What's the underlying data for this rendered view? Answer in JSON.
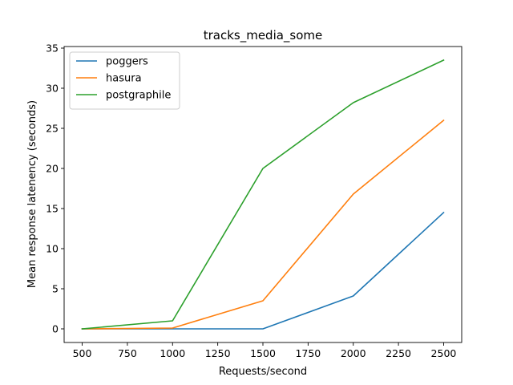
{
  "chart_data": {
    "type": "line",
    "title": "tracks_media_some",
    "xlabel": "Requests/second",
    "ylabel": "Mean response latenency (seconds)",
    "x": [
      500,
      1000,
      1500,
      2000,
      2500
    ],
    "xticks": [
      500,
      750,
      1000,
      1250,
      1500,
      1750,
      2000,
      2250,
      2500
    ],
    "yticks": [
      0,
      5,
      10,
      15,
      20,
      25,
      30,
      35
    ],
    "xlim": [
      400,
      2600
    ],
    "ylim": [
      -1.7,
      35.2
    ],
    "legend_position": "upper-left",
    "grid": false,
    "series": [
      {
        "name": "poggers",
        "color": "#1f77b4",
        "values": [
          0.0,
          0.0,
          0.0,
          4.1,
          14.5
        ]
      },
      {
        "name": "hasura",
        "color": "#ff7f0e",
        "values": [
          0.0,
          0.1,
          3.5,
          16.8,
          26.0
        ]
      },
      {
        "name": "postgraphile",
        "color": "#2ca02c",
        "values": [
          0.0,
          1.0,
          20.0,
          28.2,
          33.5
        ]
      }
    ]
  }
}
